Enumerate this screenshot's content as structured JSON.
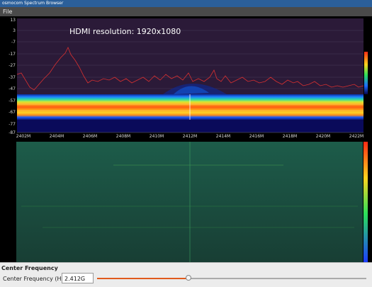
{
  "window": {
    "title": "osmocom Spectrum Browser"
  },
  "menu": {
    "file": "File"
  },
  "spectrum": {
    "overlay_text": "HDMI resolution: 1920x1080",
    "y_labels": [
      "13",
      "3",
      "-7",
      "-17",
      "-27",
      "-37",
      "-47",
      "-57",
      "-67",
      "-77",
      "-87"
    ],
    "x_labels": [
      "2402M",
      "2404M",
      "2406M",
      "2408M",
      "2410M",
      "2412M",
      "2414M",
      "2416M",
      "2418M",
      "2420M",
      "2422M"
    ]
  },
  "controls": {
    "section_title": "Center Frequency",
    "field_label": "Center Frequency (Hz):",
    "field_value": "2.412G",
    "slider_position": 0.34
  }
}
